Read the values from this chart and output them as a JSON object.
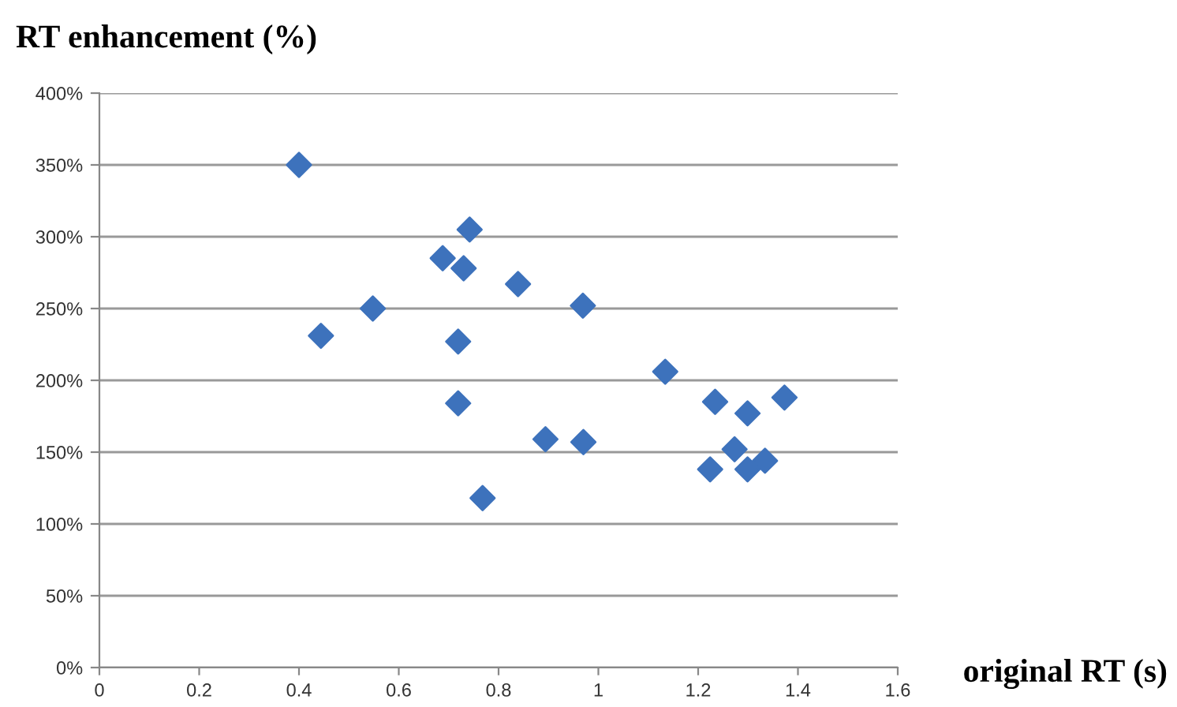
{
  "chart_data": {
    "type": "scatter",
    "xlabel": "original RT (s)",
    "ylabel": "RT enhancement (%)",
    "x": [
      0.4,
      0.742,
      0.688,
      0.73,
      0.548,
      0.444,
      0.719,
      0.719,
      0.768,
      0.839,
      0.969,
      1.134,
      1.234,
      1.373,
      1.299,
      0.894,
      0.97,
      1.273,
      1.334,
      1.224,
      1.299
    ],
    "series": [
      {
        "color": "#3d72bc",
        "values": [
          350,
          305,
          285,
          278,
          250,
          231,
          227,
          184,
          118,
          267,
          252,
          206,
          185,
          188,
          177,
          159,
          157,
          152,
          144,
          138,
          138
        ]
      }
    ],
    "xlim": [
      0,
      1.6
    ],
    "xticks": [
      0,
      0.2,
      0.4,
      0.6,
      0.8,
      1,
      1.2,
      1.4,
      1.6
    ],
    "ylim": [
      0,
      400
    ],
    "yticks": [
      {
        "value": 0,
        "label": "0%"
      },
      {
        "value": 50,
        "label": "50%"
      },
      {
        "value": 100,
        "label": "100%"
      },
      {
        "value": 150,
        "label": "150%"
      },
      {
        "value": 200,
        "label": "200%"
      },
      {
        "value": 250,
        "label": "250%"
      },
      {
        "value": 300,
        "label": "300%"
      },
      {
        "value": 350,
        "label": "350%"
      },
      {
        "value": 400,
        "label": "400%"
      }
    ],
    "grid": "y",
    "marker": "diamond"
  }
}
